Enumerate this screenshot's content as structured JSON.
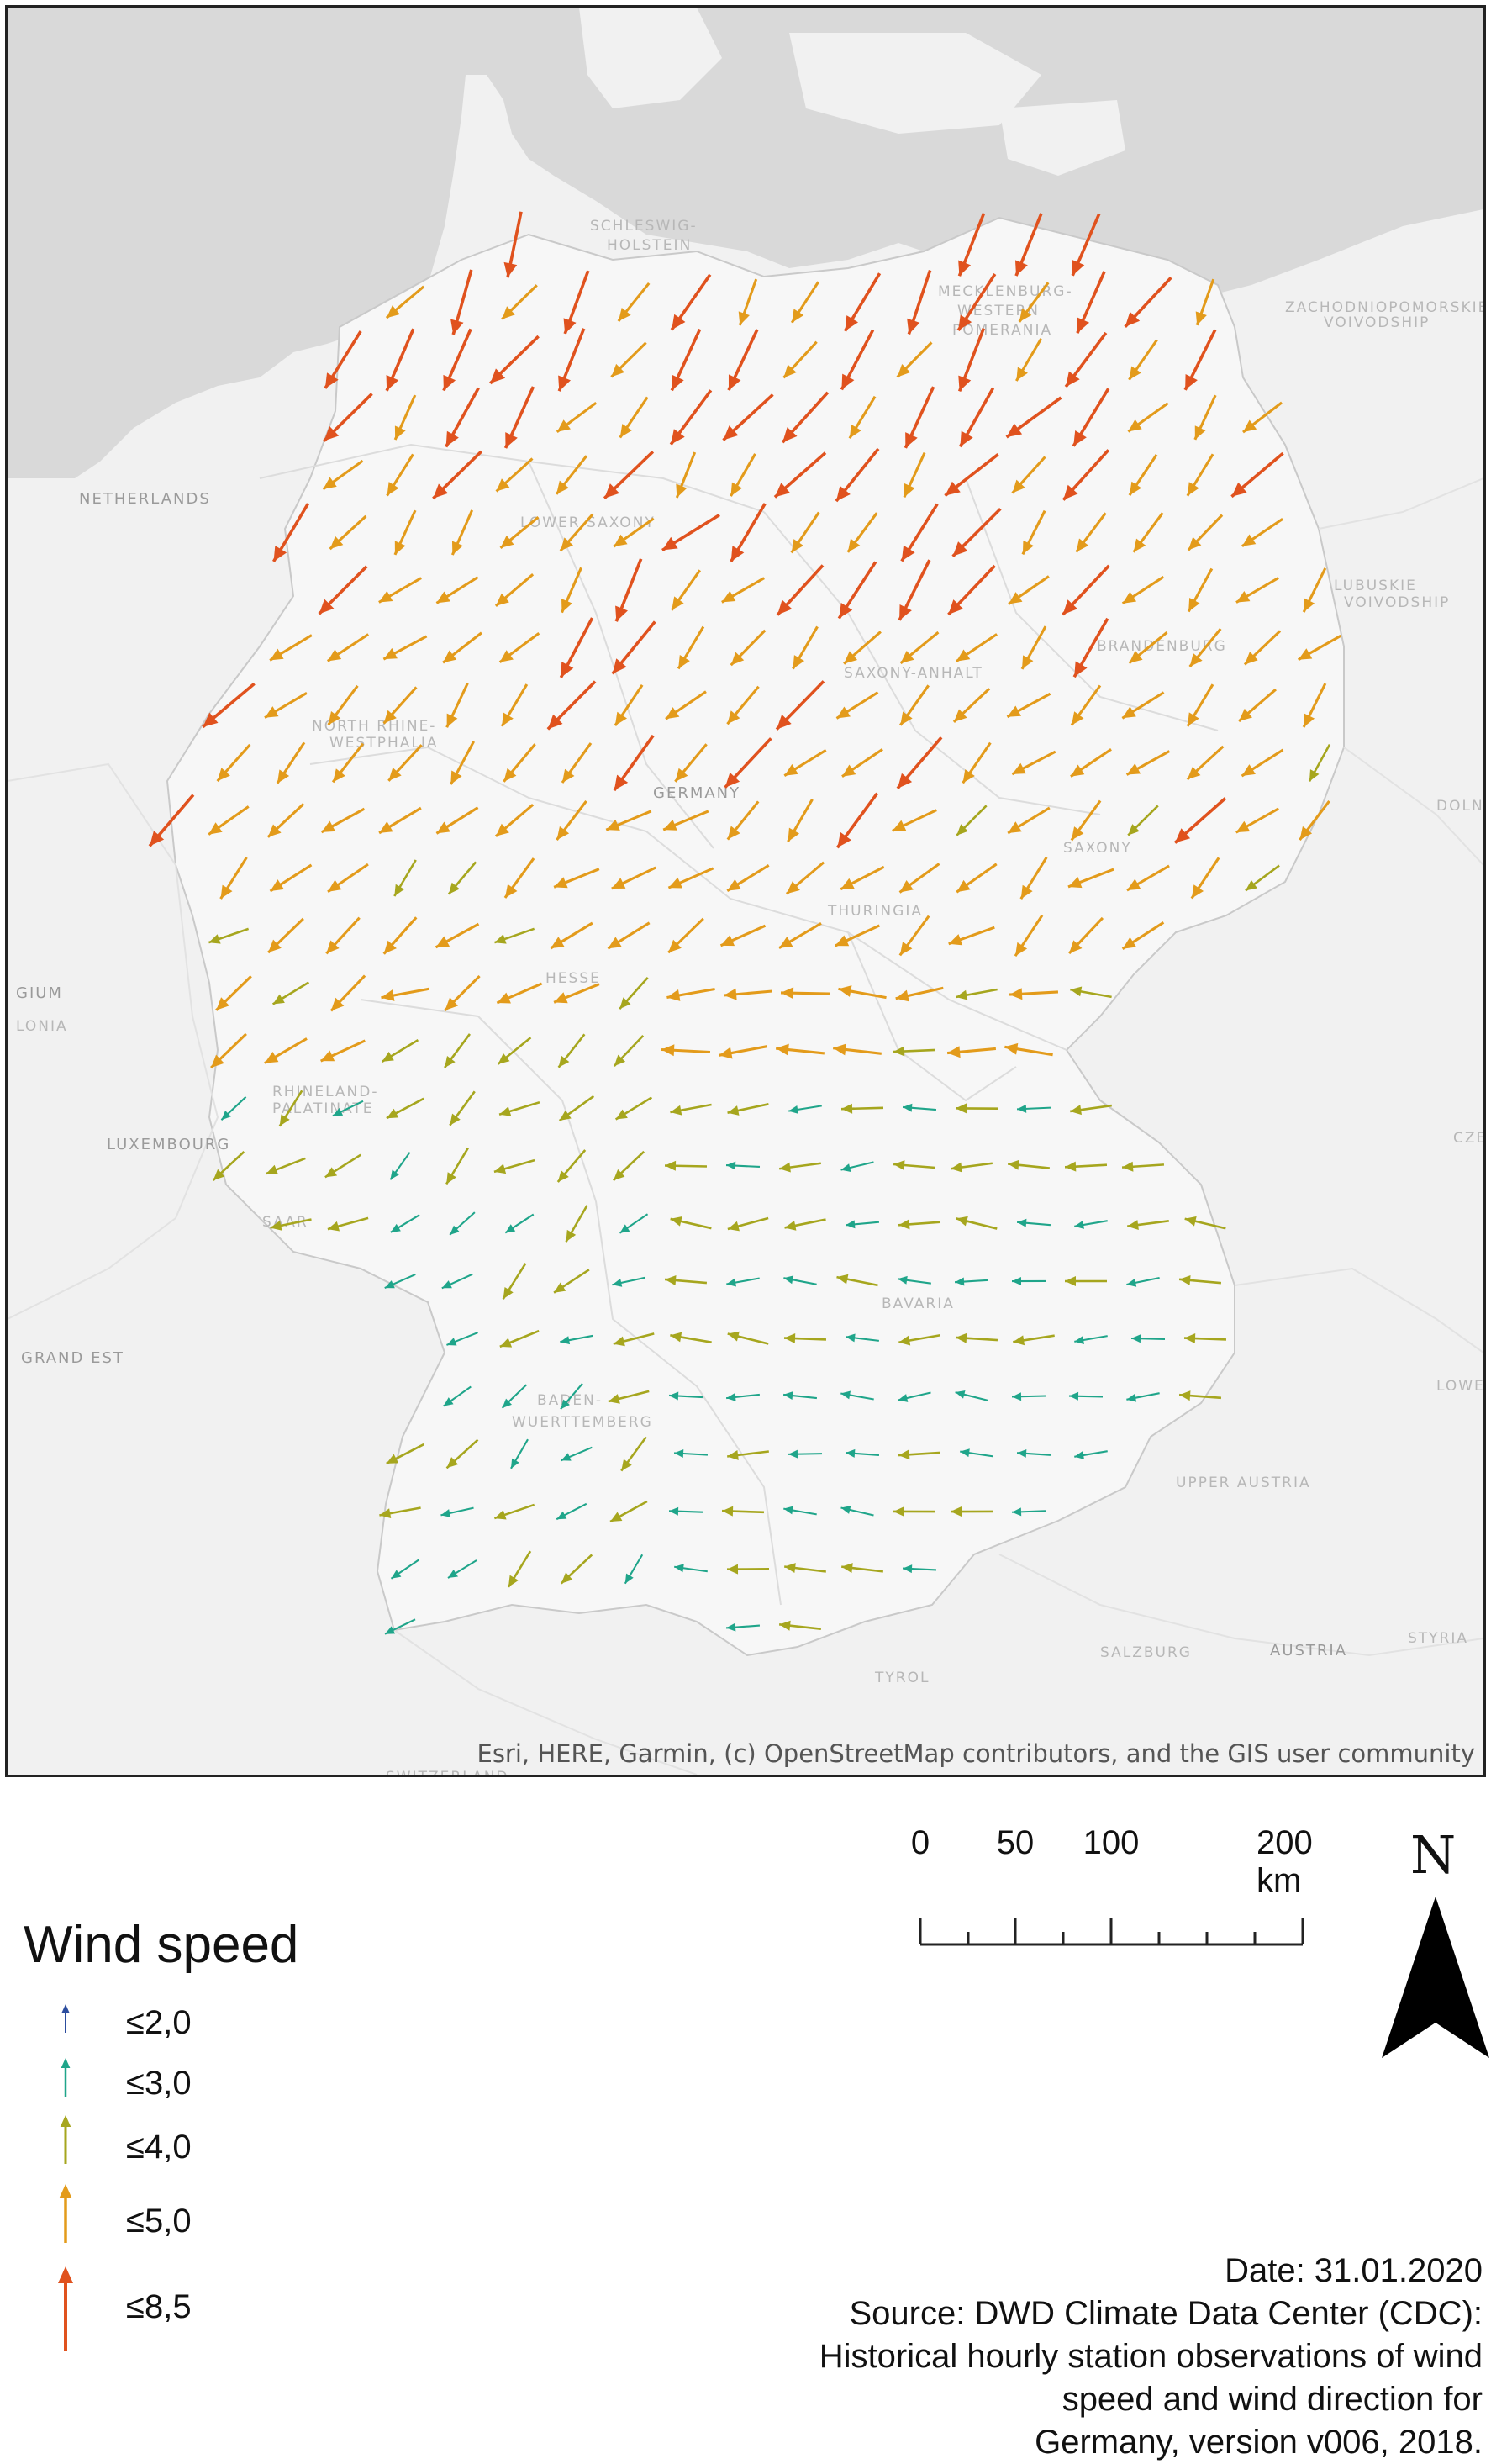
{
  "map": {
    "attribution": "Esri, HERE, Garmin, (c) OpenStreetMap contributors, and the GIS user community",
    "place_labels": [
      {
        "name": "NETHERLANDS",
        "style": "dark"
      },
      {
        "name": "SCHLESWIG-",
        "style": "light"
      },
      {
        "name": "HOLSTEIN",
        "style": "light"
      },
      {
        "name": "MECKLENBURG-",
        "style": "light"
      },
      {
        "name": "WESTERN",
        "style": "light"
      },
      {
        "name": "POMERANIA",
        "style": "light"
      },
      {
        "name": "ZACHODNIOPOMORSKIE",
        "style": "light"
      },
      {
        "name": "VOIVODSHIP",
        "style": "light"
      },
      {
        "name": "LOWER SAXONY",
        "style": "light"
      },
      {
        "name": "LUBUSKIE",
        "style": "light"
      },
      {
        "name": "VOIVODSHIP",
        "style": "light"
      },
      {
        "name": "BRANDENBURG",
        "style": "light"
      },
      {
        "name": "SAXONY-ANHALT",
        "style": "light"
      },
      {
        "name": "NORTH RHINE-",
        "style": "light"
      },
      {
        "name": "WESTPHALIA",
        "style": "light"
      },
      {
        "name": "GERMANY",
        "style": "dark"
      },
      {
        "name": "DOLN",
        "style": "light"
      },
      {
        "name": "SAXONY",
        "style": "light"
      },
      {
        "name": "THURINGIA",
        "style": "light"
      },
      {
        "name": "HESSE",
        "style": "light"
      },
      {
        "name": "GIUM",
        "style": "dark"
      },
      {
        "name": "LONIA",
        "style": "light"
      },
      {
        "name": "RHINELAND-",
        "style": "light"
      },
      {
        "name": "PALATINATE",
        "style": "light"
      },
      {
        "name": "LUXEMBOURG",
        "style": "dark"
      },
      {
        "name": "CZE",
        "style": "light"
      },
      {
        "name": "SAAR",
        "style": "light"
      },
      {
        "name": "BAVARIA",
        "style": "light"
      },
      {
        "name": "GRAND EST",
        "style": "dark"
      },
      {
        "name": "BADEN-",
        "style": "light"
      },
      {
        "name": "WUERTTEMBERG",
        "style": "light"
      },
      {
        "name": "LOWE",
        "style": "light"
      },
      {
        "name": "UPPER AUSTRIA",
        "style": "light"
      },
      {
        "name": "SALZBURG",
        "style": "light"
      },
      {
        "name": "AUSTRIA",
        "style": "dark"
      },
      {
        "name": "STYRIA",
        "style": "light"
      },
      {
        "name": "TYROL",
        "style": "light"
      },
      {
        "name": "SWITZERLAND",
        "style": "light"
      }
    ]
  },
  "legend": {
    "title": "Wind speed",
    "classes": [
      {
        "label": "≤2,0",
        "color": "#2c4d9e"
      },
      {
        "label": "≤3,0",
        "color": "#1fa58a"
      },
      {
        "label": "≤4,0",
        "color": "#a6a61e"
      },
      {
        "label": "≤5,0",
        "color": "#e39b1b"
      },
      {
        "label": "≤8,5",
        "color": "#e0521e"
      }
    ]
  },
  "scale_bar": {
    "labels": [
      "0",
      "50",
      "100",
      "200 km"
    ]
  },
  "north_arrow": {
    "letter": "N"
  },
  "source_lines": [
    "Date: 31.01.2020",
    "Source: DWD Climate Data Center (CDC):",
    "Historical hourly station observations of wind",
    "speed and wind direction for",
    "Germany, version v006, 2018."
  ]
}
